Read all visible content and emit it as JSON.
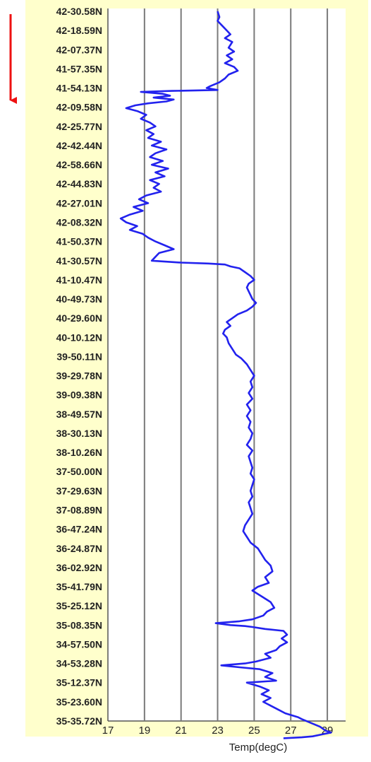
{
  "chart_data": {
    "type": "line",
    "title": "",
    "xlabel": "Temp(degC)",
    "ylabel": "",
    "xlim": [
      17,
      30
    ],
    "xticks": [
      "17",
      "19",
      "21",
      "23",
      "25",
      "27",
      "29"
    ],
    "y_tick_labels": [
      "42-30.58N",
      "42-18.59N",
      "42-07.37N",
      "41-57.35N",
      "41-54.13N",
      "42-09.58N",
      "42-25.77N",
      "42-42.44N",
      "42-58.66N",
      "42-44.83N",
      "42-27.01N",
      "42-08.32N",
      "41-50.37N",
      "41-30.57N",
      "41-10.47N",
      "40-49.73N",
      "40-29.60N",
      "40-10.12N",
      "39-50.11N",
      "39-29.78N",
      "39-09.38N",
      "38-49.57N",
      "38-30.13N",
      "38-10.26N",
      "37-50.00N",
      "37-29.63N",
      "37-08.89N",
      "36-47.24N",
      "36-24.87N",
      "36-02.92N",
      "35-41.79N",
      "35-25.12N",
      "35-08.35N",
      "34-57.50N",
      "34-53.28N",
      "35-12.37N",
      "35-23.60N",
      "35-35.72N"
    ],
    "grid": "vertical",
    "line_color": "#2222ee",
    "arrow_color": "#ee1111",
    "series": [
      {
        "values": [
          [
            23.0,
            0.0
          ],
          [
            23.1,
            0.3
          ],
          [
            23.0,
            0.5
          ],
          [
            23.3,
            0.8
          ],
          [
            23.5,
            1.0
          ],
          [
            23.7,
            1.2
          ],
          [
            23.4,
            1.4
          ],
          [
            23.8,
            1.6
          ],
          [
            23.6,
            1.9
          ],
          [
            23.9,
            2.1
          ],
          [
            23.5,
            2.3
          ],
          [
            23.8,
            2.5
          ],
          [
            23.4,
            2.7
          ],
          [
            23.9,
            2.9
          ],
          [
            24.1,
            3.1
          ],
          [
            23.6,
            3.3
          ],
          [
            23.4,
            3.5
          ],
          [
            23.1,
            3.7
          ],
          [
            22.6,
            3.9
          ],
          [
            22.4,
            4.0
          ],
          [
            23.0,
            4.1
          ],
          [
            20.5,
            4.15
          ],
          [
            18.8,
            4.2
          ],
          [
            20.0,
            4.3
          ],
          [
            20.4,
            4.4
          ],
          [
            19.5,
            4.5
          ],
          [
            20.6,
            4.6
          ],
          [
            20.2,
            4.7
          ],
          [
            19.2,
            4.8
          ],
          [
            18.5,
            4.9
          ],
          [
            18.0,
            5.05
          ],
          [
            18.6,
            5.2
          ],
          [
            19.1,
            5.4
          ],
          [
            18.8,
            5.6
          ],
          [
            19.3,
            5.8
          ],
          [
            19.6,
            6.0
          ],
          [
            19.1,
            6.2
          ],
          [
            19.5,
            6.4
          ],
          [
            19.2,
            6.6
          ],
          [
            19.9,
            6.8
          ],
          [
            19.4,
            7.0
          ],
          [
            20.2,
            7.2
          ],
          [
            19.6,
            7.4
          ],
          [
            19.3,
            7.6
          ],
          [
            20.0,
            7.8
          ],
          [
            19.4,
            8.0
          ],
          [
            20.3,
            8.2
          ],
          [
            19.6,
            8.4
          ],
          [
            20.1,
            8.6
          ],
          [
            19.3,
            8.8
          ],
          [
            19.8,
            9.0
          ],
          [
            19.5,
            9.2
          ],
          [
            19.9,
            9.4
          ],
          [
            19.1,
            9.6
          ],
          [
            18.7,
            9.8
          ],
          [
            19.2,
            10.0
          ],
          [
            18.4,
            10.2
          ],
          [
            18.9,
            10.4
          ],
          [
            18.2,
            10.6
          ],
          [
            17.7,
            10.8
          ],
          [
            18.0,
            11.0
          ],
          [
            18.6,
            11.2
          ],
          [
            18.2,
            11.4
          ],
          [
            18.9,
            11.6
          ],
          [
            19.2,
            11.8
          ],
          [
            19.6,
            12.0
          ],
          [
            20.1,
            12.2
          ],
          [
            20.6,
            12.4
          ],
          [
            19.8,
            12.6
          ],
          [
            19.6,
            12.8
          ],
          [
            19.4,
            13.0
          ],
          [
            21.0,
            13.1
          ],
          [
            22.5,
            13.15
          ],
          [
            23.4,
            13.2
          ],
          [
            23.7,
            13.3
          ],
          [
            24.2,
            13.4
          ],
          [
            24.5,
            13.6
          ],
          [
            24.8,
            13.8
          ],
          [
            25.0,
            14.0
          ],
          [
            24.7,
            14.2
          ],
          [
            24.6,
            14.4
          ],
          [
            24.7,
            14.6
          ],
          [
            24.8,
            14.8
          ],
          [
            24.9,
            15.0
          ],
          [
            25.1,
            15.2
          ],
          [
            24.9,
            15.4
          ],
          [
            24.6,
            15.6
          ],
          [
            24.1,
            15.8
          ],
          [
            23.8,
            16.0
          ],
          [
            23.5,
            16.2
          ],
          [
            23.7,
            16.4
          ],
          [
            23.4,
            16.6
          ],
          [
            23.3,
            16.8
          ],
          [
            23.5,
            17.0
          ],
          [
            23.6,
            17.3
          ],
          [
            23.8,
            17.6
          ],
          [
            24.0,
            17.9
          ],
          [
            24.3,
            18.1
          ],
          [
            24.6,
            18.4
          ],
          [
            24.8,
            18.7
          ],
          [
            25.0,
            19.0
          ],
          [
            24.8,
            19.3
          ],
          [
            24.9,
            19.6
          ],
          [
            24.7,
            19.9
          ],
          [
            24.9,
            20.2
          ],
          [
            24.6,
            20.5
          ],
          [
            24.8,
            20.8
          ],
          [
            24.6,
            21.1
          ],
          [
            24.8,
            21.4
          ],
          [
            24.7,
            21.7
          ],
          [
            24.9,
            22.0
          ],
          [
            24.8,
            22.3
          ],
          [
            24.6,
            22.6
          ],
          [
            24.9,
            22.9
          ],
          [
            24.7,
            23.2
          ],
          [
            24.8,
            23.5
          ],
          [
            24.9,
            23.8
          ],
          [
            24.8,
            24.1
          ],
          [
            25.0,
            24.4
          ],
          [
            24.9,
            24.7
          ],
          [
            24.8,
            25.0
          ],
          [
            24.9,
            25.3
          ],
          [
            24.7,
            25.6
          ],
          [
            24.8,
            25.9
          ],
          [
            24.9,
            26.2
          ],
          [
            24.7,
            26.5
          ],
          [
            24.5,
            26.8
          ],
          [
            24.4,
            27.1
          ],
          [
            24.6,
            27.4
          ],
          [
            24.8,
            27.7
          ],
          [
            25.2,
            28.0
          ],
          [
            25.4,
            28.3
          ],
          [
            25.6,
            28.6
          ],
          [
            25.9,
            28.9
          ],
          [
            26.0,
            29.2
          ],
          [
            25.6,
            29.5
          ],
          [
            25.8,
            29.8
          ],
          [
            25.2,
            30.0
          ],
          [
            24.9,
            30.2
          ],
          [
            25.4,
            30.5
          ],
          [
            25.9,
            30.8
          ],
          [
            26.1,
            31.1
          ],
          [
            25.7,
            31.3
          ],
          [
            25.5,
            31.5
          ],
          [
            24.9,
            31.7
          ],
          [
            24.2,
            31.8
          ],
          [
            22.9,
            31.9
          ],
          [
            23.7,
            32.0
          ],
          [
            24.5,
            32.05
          ],
          [
            24.9,
            32.1
          ],
          [
            25.6,
            32.2
          ],
          [
            26.6,
            32.3
          ],
          [
            26.8,
            32.5
          ],
          [
            26.5,
            32.7
          ],
          [
            26.8,
            32.9
          ],
          [
            26.4,
            33.1
          ],
          [
            26.2,
            33.3
          ],
          [
            25.6,
            33.5
          ],
          [
            25.9,
            33.7
          ],
          [
            25.1,
            33.9
          ],
          [
            24.5,
            34.0
          ],
          [
            23.2,
            34.1
          ],
          [
            24.2,
            34.2
          ],
          [
            25.3,
            34.3
          ],
          [
            26.0,
            34.5
          ],
          [
            25.6,
            34.7
          ],
          [
            26.2,
            34.9
          ],
          [
            24.6,
            35.0
          ],
          [
            25.3,
            35.2
          ],
          [
            25.8,
            35.4
          ],
          [
            25.4,
            35.6
          ],
          [
            25.9,
            35.8
          ],
          [
            25.5,
            36.0
          ],
          [
            25.9,
            36.2
          ],
          [
            26.3,
            36.4
          ],
          [
            26.7,
            36.6
          ],
          [
            27.4,
            36.8
          ],
          [
            27.6,
            36.9
          ],
          [
            28.1,
            37.1
          ],
          [
            28.6,
            37.3
          ],
          [
            28.9,
            37.5
          ],
          [
            29.2,
            37.6
          ],
          [
            28.7,
            37.7
          ],
          [
            28.2,
            37.8
          ],
          [
            27.6,
            37.85
          ],
          [
            26.6,
            37.9
          ]
        ]
      }
    ]
  }
}
